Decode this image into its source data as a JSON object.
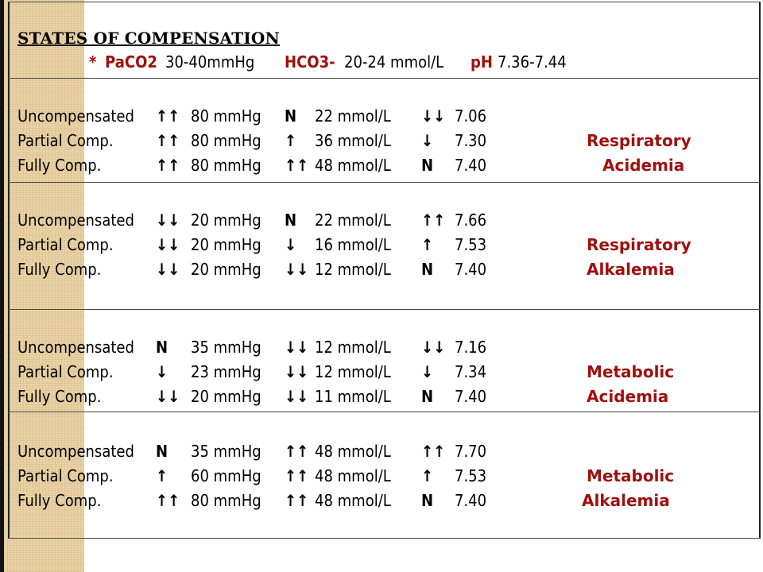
{
  "title": "STATES OF COMPENSATION",
  "reference": {
    "star": "*",
    "paco2_label": "PaCO2",
    "paco2_range": "30-40mmHg",
    "hco3_label": "HCO3-",
    "hco3_range": "20-24 mmol/L",
    "ph_label": "pH",
    "ph_range": "7.36-7.44"
  },
  "sections": [
    {
      "label1": "Respiratory",
      "label2": "Acidemia",
      "rows": [
        {
          "state": "Uncompensated",
          "paco2_arrow": "↑↑",
          "paco2": "80 mmHg",
          "hco3_arrow": "N",
          "hco3": "22 mmol/L",
          "ph_arrow": "↓↓",
          "ph": "7.06"
        },
        {
          "state": "Partial Comp.",
          "paco2_arrow": "↑↑",
          "paco2": "80 mmHg",
          "hco3_arrow": "↑",
          "hco3": "36 mmol/L",
          "ph_arrow": "↓",
          "ph": "7.30"
        },
        {
          "state": "Fully Comp.",
          "paco2_arrow": "↑↑",
          "paco2": "80 mmHg",
          "hco3_arrow": "↑↑",
          "hco3": "48 mmol/L",
          "ph_arrow": "N",
          "ph": "7.40"
        }
      ]
    },
    {
      "label1": "Respiratory",
      "label2": "Alkalemia",
      "rows": [
        {
          "state": "Uncompensated",
          "paco2_arrow": "↓↓",
          "paco2": "20 mmHg",
          "hco3_arrow": "N",
          "hco3": "22 mmol/L",
          "ph_arrow": "↑↑",
          "ph": "7.66"
        },
        {
          "state": "Partial Comp.",
          "paco2_arrow": "↓↓",
          "paco2": "20 mmHg",
          "hco3_arrow": "↓",
          "hco3": "16 mmol/L",
          "ph_arrow": "↑",
          "ph": "7.53"
        },
        {
          "state": "Fully Comp.",
          "paco2_arrow": "↓↓",
          "paco2": "20 mmHg",
          "hco3_arrow": "↓↓",
          "hco3": "12 mmol/L",
          "ph_arrow": "N",
          "ph": "7.40"
        }
      ]
    },
    {
      "label1": "Metabolic",
      "label2": "Acidemia",
      "rows": [
        {
          "state": "Uncompensated",
          "paco2_arrow": "N",
          "paco2": "35 mmHg",
          "hco3_arrow": "↓↓",
          "hco3": "12 mmol/L",
          "ph_arrow": "↓↓",
          "ph": "7.16"
        },
        {
          "state": "Partial Comp.",
          "paco2_arrow": "↓",
          "paco2": "23 mmHg",
          "hco3_arrow": "↓↓",
          "hco3": "12 mmol/L",
          "ph_arrow": "↓",
          "ph": "7.34"
        },
        {
          "state": "Fully Comp.",
          "paco2_arrow": "↓↓",
          "paco2": "20 mmHg",
          "hco3_arrow": "↓↓",
          "hco3": "11 mmol/L",
          "ph_arrow": "N",
          "ph": "7.40"
        }
      ]
    },
    {
      "label1": "Metabolic",
      "label2": "Alkalemia",
      "rows": [
        {
          "state": "Uncompensated",
          "paco2_arrow": "N",
          "paco2": "35 mmHg",
          "hco3_arrow": "↑↑",
          "hco3": "48 mmol/L",
          "ph_arrow": "↑↑",
          "ph": "7.70"
        },
        {
          "state": "Partial Comp.",
          "paco2_arrow": "↑",
          "paco2": "60 mmHg",
          "hco3_arrow": "↑↑",
          "hco3": "48 mmol/L",
          "ph_arrow": "↑",
          "ph": "7.53"
        },
        {
          "state": "Fully Comp.",
          "paco2_arrow": "↑↑",
          "paco2": "80 mmHg",
          "hco3_arrow": "↑↑",
          "hco3": "48 mmol/L",
          "ph_arrow": "N",
          "ph": "7.40"
        }
      ]
    }
  ]
}
